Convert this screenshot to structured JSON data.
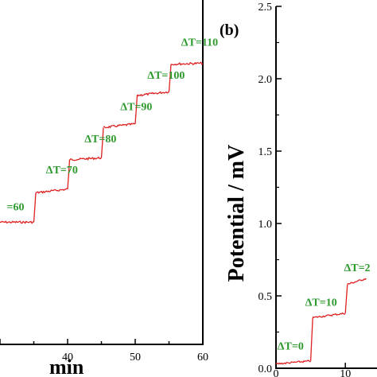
{
  "colors": {
    "trace": "#e02020",
    "annotation": "#2e9a2e",
    "axis": "#000000"
  },
  "chart_data": [
    {
      "type": "line",
      "panel": "a",
      "xlabel": "min",
      "ylabel": "",
      "xlim": [
        30,
        60
      ],
      "x_ticks": [
        40,
        50,
        60
      ],
      "grid": false,
      "series": [
        {
          "x": [
            30,
            35,
            35.3,
            40,
            40.3,
            45,
            45.3,
            50,
            50.3,
            55,
            55.3,
            60
          ],
          "y": [
            0.3,
            0.3,
            0.62,
            0.66,
            0.98,
            1.0,
            1.33,
            1.37,
            1.68,
            1.72,
            2.02,
            2.03
          ]
        }
      ],
      "annotations": [
        {
          "text": "=60",
          "x": 31,
          "y": 0.43
        },
        {
          "text": "ΔT=70",
          "x": 36.8,
          "y": 0.83
        },
        {
          "text": "ΔT=80",
          "x": 42.5,
          "y": 1.17
        },
        {
          "text": "ΔT=90",
          "x": 47.8,
          "y": 1.52
        },
        {
          "text": "ΔT=100",
          "x": 51.8,
          "y": 1.86
        },
        {
          "text": "ΔT=110",
          "x": 56.8,
          "y": 2.22
        }
      ]
    },
    {
      "type": "line",
      "panel": "b",
      "panel_label": "(b)",
      "xlabel": "",
      "ylabel": "Potential / mV",
      "ylim": [
        0,
        2.5
      ],
      "x_ticks": [
        0,
        10
      ],
      "y_ticks": [
        "0.0",
        "0.5",
        "1.0",
        "1.5",
        "2.0",
        "2.5"
      ],
      "grid": false,
      "series": [
        {
          "x": [
            0,
            5,
            5.3,
            10,
            10.3,
            13
          ],
          "y": [
            0.03,
            0.05,
            0.35,
            0.38,
            0.58,
            0.62
          ]
        }
      ],
      "annotations": [
        {
          "text": "ΔT=0",
          "x": 0.2,
          "y": 0.13
        },
        {
          "text": "ΔT=10",
          "x": 4.2,
          "y": 0.43
        },
        {
          "text": "ΔT=2",
          "x": 9.8,
          "y": 0.67
        }
      ]
    }
  ]
}
